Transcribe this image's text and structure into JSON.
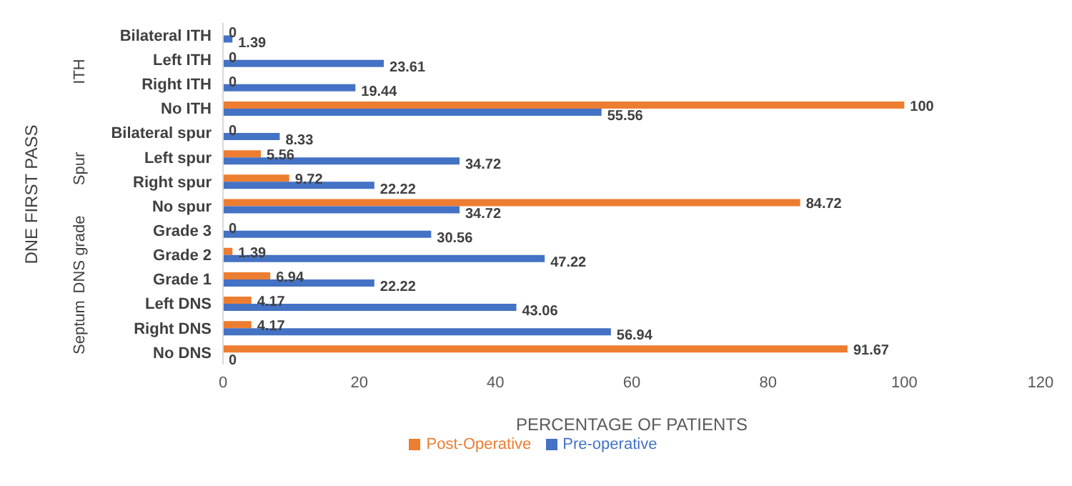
{
  "chart_data": {
    "type": "bar",
    "orientation": "horizontal",
    "ylabel": "DNE FIRST PASS",
    "xlabel": "PERCENTAGE OF PATIENTS",
    "categories": [
      "Bilateral ITH",
      "Left ITH",
      "Right ITH",
      "No ITH",
      "Bilateral spur",
      "Left spur",
      "Right spur",
      "No spur",
      "Grade 3",
      "Grade 2",
      "Grade 1",
      "Left DNS",
      "Right DNS",
      "No DNS"
    ],
    "series": [
      {
        "name": "Post-Operative",
        "color": "#ed7d31",
        "values": [
          0,
          0,
          0,
          100,
          0,
          5.56,
          9.72,
          84.72,
          0,
          1.39,
          6.94,
          4.17,
          4.17,
          91.67
        ]
      },
      {
        "name": "Pre-operative",
        "color": "#4472c4",
        "values": [
          1.39,
          23.61,
          19.44,
          55.56,
          8.33,
          34.72,
          22.22,
          34.72,
          30.56,
          47.22,
          22.22,
          43.06,
          56.94,
          0
        ]
      }
    ],
    "xlim": [
      0,
      120
    ],
    "xticks": [
      0,
      20,
      40,
      60,
      80,
      100,
      120
    ],
    "grid": false,
    "legend": "bottom",
    "data_labels": true,
    "annotations": [
      "ITH",
      "Spur",
      "DNS grade",
      "Septum"
    ]
  }
}
